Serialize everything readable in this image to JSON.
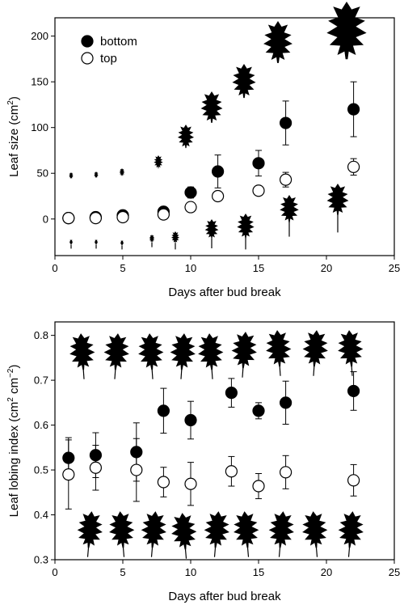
{
  "chart_data": [
    {
      "type": "scatter",
      "title": "",
      "xlabel": "Days after bud break",
      "ylabel": "Leaf size (cm",
      "ylabel_sup": "2",
      "ylabel_end": ")",
      "xlim": [
        0,
        25
      ],
      "ylim": [
        -40,
        220
      ],
      "xticks": [
        0,
        5,
        10,
        15,
        20,
        25
      ],
      "yticks": [
        0,
        50,
        100,
        150,
        200
      ],
      "grid": false,
      "legend_placement": "top-left",
      "series": [
        {
          "name": "bottom",
          "marker": "filled-circle",
          "x": [
            1,
            3,
            5,
            8,
            10,
            12,
            15,
            17,
            22
          ],
          "y": [
            1,
            2,
            4,
            8,
            29,
            52,
            61,
            105,
            120
          ],
          "err": [
            0,
            0,
            0,
            0,
            6,
            18,
            14,
            24,
            30
          ]
        },
        {
          "name": "top",
          "marker": "open-circle",
          "x": [
            1,
            3,
            5,
            8,
            10,
            12,
            15,
            17,
            22
          ],
          "y": [
            1,
            1,
            2,
            5,
            13,
            25,
            31,
            43,
            57
          ],
          "err": [
            0,
            0,
            0,
            0,
            0,
            0,
            0,
            8,
            9
          ]
        }
      ]
    },
    {
      "type": "scatter",
      "title": "",
      "xlabel": "Days after bud break",
      "ylabel": "Leaf lobing index (cm",
      "ylabel_sup1": "2",
      "ylabel_mid": " cm",
      "ylabel_sup2": "−2",
      "ylabel_end": ")",
      "xlim": [
        0,
        25
      ],
      "ylim": [
        0.3,
        0.83
      ],
      "xticks": [
        0,
        5,
        10,
        15,
        20,
        25
      ],
      "yticks": [
        0.3,
        0.4,
        0.5,
        0.6,
        0.7,
        0.8
      ],
      "grid": false,
      "series": [
        {
          "name": "bottom",
          "marker": "filled-circle",
          "x": [
            1,
            3,
            6,
            8,
            10,
            13,
            15,
            17,
            22
          ],
          "y": [
            0.527,
            0.533,
            0.54,
            0.632,
            0.611,
            0.672,
            0.632,
            0.65,
            0.676
          ],
          "err": [
            0.045,
            0.05,
            0.065,
            0.05,
            0.042,
            0.032,
            0.018,
            0.048,
            0.043
          ]
        },
        {
          "name": "top",
          "marker": "open-circle",
          "x": [
            1,
            3,
            6,
            8,
            10,
            13,
            15,
            17,
            22
          ],
          "y": [
            0.49,
            0.505,
            0.5,
            0.473,
            0.469,
            0.497,
            0.464,
            0.495,
            0.477
          ],
          "err": [
            0.077,
            0.05,
            0.07,
            0.033,
            0.048,
            0.033,
            0.028,
            0.037,
            0.035
          ]
        }
      ]
    }
  ]
}
